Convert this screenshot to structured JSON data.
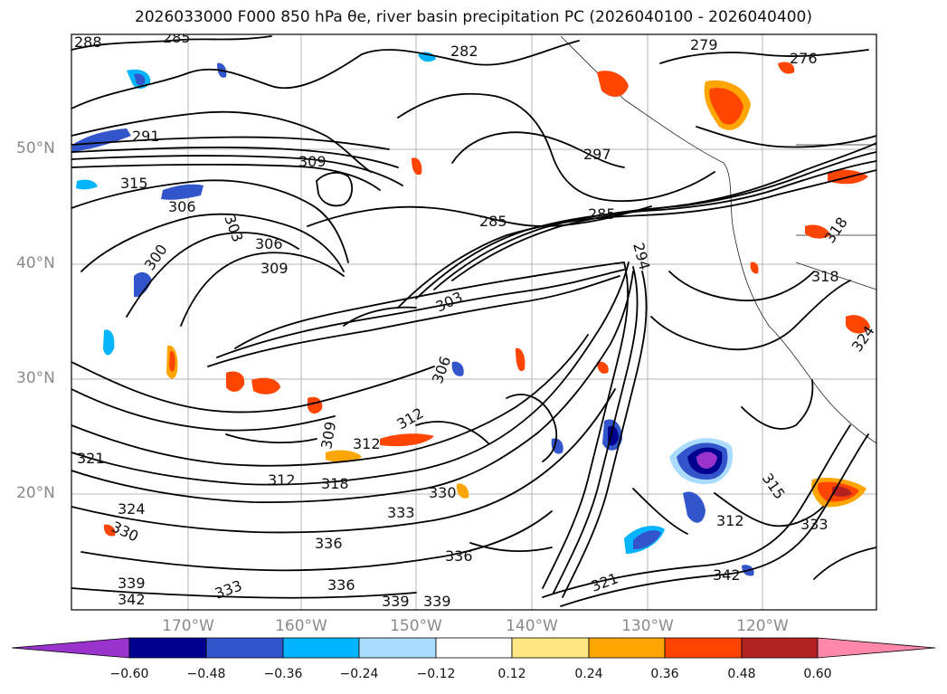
{
  "title": "2026033000 F000 850 hPa θe, river basin precipitation PC (2026040100 - 2026040400)",
  "lat_labels": [
    "50°N",
    "40°N",
    "30°N",
    "20°N"
  ],
  "lon_labels": [
    "170°W",
    "160°W",
    "150°W",
    "140°W",
    "130°W",
    "120°W"
  ],
  "colorbar": {
    "ticks": [
      "−0.60",
      "−0.48",
      "−0.36",
      "−0.24",
      "−0.12",
      "0.12",
      "0.24",
      "0.36",
      "0.48",
      "0.60"
    ],
    "colors": [
      "#9933cc",
      "#000090",
      "#3355cc",
      "#00b4ff",
      "#aadcff",
      "#ffffff",
      "#ffe680",
      "#ffa500",
      "#ff4500",
      "#b22222",
      "#ff88aa"
    ]
  },
  "contour_labels": [
    "288",
    "285",
    "282",
    "279",
    "276",
    "291",
    "315",
    "309",
    "306",
    "303",
    "300",
    "297",
    "294",
    "285",
    "285",
    "318",
    "318",
    "306",
    "303",
    "306",
    "309",
    "312",
    "312",
    "309",
    "312",
    "318",
    "321",
    "324",
    "330",
    "333",
    "330",
    "336",
    "336",
    "339",
    "339",
    "339",
    "342",
    "336",
    "333",
    "321",
    "342",
    "333",
    "312",
    "315",
    "324"
  ]
}
